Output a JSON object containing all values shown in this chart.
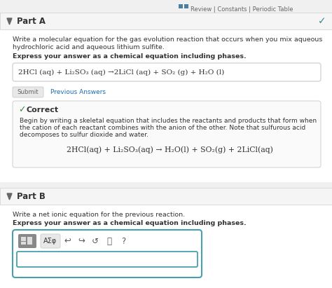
{
  "bg_color": "#f0f0f0",
  "white": "#ffffff",
  "light_gray": "#e8e8e8",
  "section_gray": "#f5f5f5",
  "mid_gray": "#cccccc",
  "border_gray": "#d0d0d0",
  "dark_gray": "#666666",
  "text_color": "#333333",
  "teal_check": "#3a8a8a",
  "blue_link": "#1a6db5",
  "green_check": "#3a8a4a",
  "top_icon_color": "#4a7fa0",
  "top_text_color": "#666666",
  "teal_toolbar": "#4a9faf",
  "top_right_text": "Review | Constants | Periodic Table",
  "part_a_label": "Part A",
  "part_a_check": "✓",
  "part_a_desc1": "Write a molecular equation for the gas evolution reaction that occurs when you mix aqueous",
  "part_a_desc2": "hydrochloric acid and aqueous lithium sulfite.",
  "bold_instruction": "Express your answer as a chemical equation including phases.",
  "equation_box": "2HCl (aq) + Li₂SO₃ (aq) →2LiCl (aq) + SO₂ (g) + H₂O (l)",
  "submit_text": "Submit",
  "previous_answers": "Previous Answers",
  "correct_label": "Correct",
  "correct_desc1": "Begin by writing a skeletal equation that includes the reactants and products that form when",
  "correct_desc2": "the cation of each reactant combines with the anion of the other. Note that sulfurous acid",
  "correct_desc3": "decomposes to sulfur dioxide and water.",
  "correct_eq": "2HCl(aq) + Li₂SO₃(aq) → H₂O(l) + SO₂(g) + 2LiCl(aq)",
  "part_b_label": "Part B",
  "part_b_desc": "Write a net ionic equation for the previous reaction.",
  "bold_instruction_b": "Express your answer as a chemical equation including phases.",
  "figw": 4.74,
  "figh": 4.11,
  "dpi": 100
}
